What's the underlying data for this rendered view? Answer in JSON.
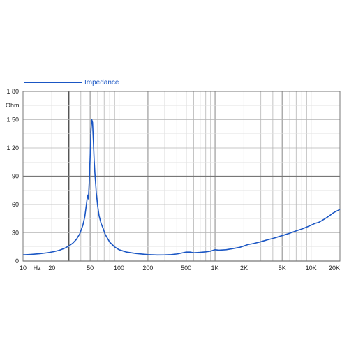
{
  "chart_data": {
    "type": "line",
    "x_scale": "log",
    "xlim": [
      10,
      20000
    ],
    "ylim": [
      0,
      180
    ],
    "ylabel": "Ohm",
    "xlabel": "",
    "grid": true,
    "legend_position": "top-left",
    "x_ticks": [
      {
        "value": 10,
        "label": "10"
      },
      {
        "value": 14,
        "label": "Hz"
      },
      {
        "value": 20,
        "label": "20"
      },
      {
        "value": 50,
        "label": "50"
      },
      {
        "value": 100,
        "label": "100"
      },
      {
        "value": 200,
        "label": "200"
      },
      {
        "value": 500,
        "label": "500"
      },
      {
        "value": 1000,
        "label": "1K"
      },
      {
        "value": 2000,
        "label": "2K"
      },
      {
        "value": 5000,
        "label": "5K"
      },
      {
        "value": 10000,
        "label": "10K"
      },
      {
        "value": 20000,
        "label": "20K"
      }
    ],
    "y_ticks": [
      {
        "value": 180,
        "label": "1 80"
      },
      {
        "value": 150,
        "label": "1 50"
      },
      {
        "value": 120,
        "label": "1 20"
      },
      {
        "value": 90,
        "label": "90"
      },
      {
        "value": 60,
        "label": "60"
      },
      {
        "value": 30,
        "label": "30"
      },
      {
        "value": 0,
        "label": "0"
      }
    ],
    "series": [
      {
        "name": "Impedance",
        "color": "#1a56c4",
        "points": [
          [
            10,
            6.5
          ],
          [
            12,
            7
          ],
          [
            15,
            7.8
          ],
          [
            18,
            8.8
          ],
          [
            21,
            10
          ],
          [
            24,
            11.5
          ],
          [
            27,
            13.5
          ],
          [
            30,
            16
          ],
          [
            33,
            19
          ],
          [
            36,
            23
          ],
          [
            39,
            29
          ],
          [
            42,
            38
          ],
          [
            44,
            47
          ],
          [
            46,
            62
          ],
          [
            47,
            70
          ],
          [
            48,
            66
          ],
          [
            49,
            85
          ],
          [
            50,
            110
          ],
          [
            51,
            138
          ],
          [
            52,
            150
          ],
          [
            53,
            147
          ],
          [
            54,
            128
          ],
          [
            55,
            108
          ],
          [
            56,
            94
          ],
          [
            58,
            72
          ],
          [
            60,
            58
          ],
          [
            62,
            48
          ],
          [
            65,
            40
          ],
          [
            68,
            35
          ],
          [
            72,
            28
          ],
          [
            76,
            24
          ],
          [
            80,
            20
          ],
          [
            90,
            15
          ],
          [
            100,
            12
          ],
          [
            120,
            9.5
          ],
          [
            150,
            8
          ],
          [
            200,
            6.8
          ],
          [
            250,
            6.4
          ],
          [
            300,
            6.5
          ],
          [
            350,
            6.8
          ],
          [
            400,
            7.5
          ],
          [
            450,
            8.5
          ],
          [
            500,
            9.5
          ],
          [
            550,
            9.5
          ],
          [
            600,
            8.8
          ],
          [
            700,
            9.2
          ],
          [
            800,
            9.8
          ],
          [
            900,
            10.5
          ],
          [
            1000,
            12
          ],
          [
            1100,
            11.5
          ],
          [
            1300,
            12
          ],
          [
            1500,
            13
          ],
          [
            1800,
            14.5
          ],
          [
            2000,
            16
          ],
          [
            2200,
            17.5
          ],
          [
            2500,
            18.5
          ],
          [
            3000,
            20.5
          ],
          [
            3500,
            22.5
          ],
          [
            4000,
            24
          ],
          [
            5000,
            27
          ],
          [
            6000,
            29.5
          ],
          [
            7000,
            32
          ],
          [
            8000,
            34
          ],
          [
            9000,
            36
          ],
          [
            10000,
            38
          ],
          [
            11000,
            40
          ],
          [
            12000,
            41
          ],
          [
            13000,
            43
          ],
          [
            14000,
            45
          ],
          [
            15000,
            47
          ],
          [
            16000,
            49
          ],
          [
            17000,
            51
          ],
          [
            18000,
            52.5
          ],
          [
            19000,
            53.5
          ],
          [
            20000,
            55
          ]
        ]
      }
    ]
  }
}
